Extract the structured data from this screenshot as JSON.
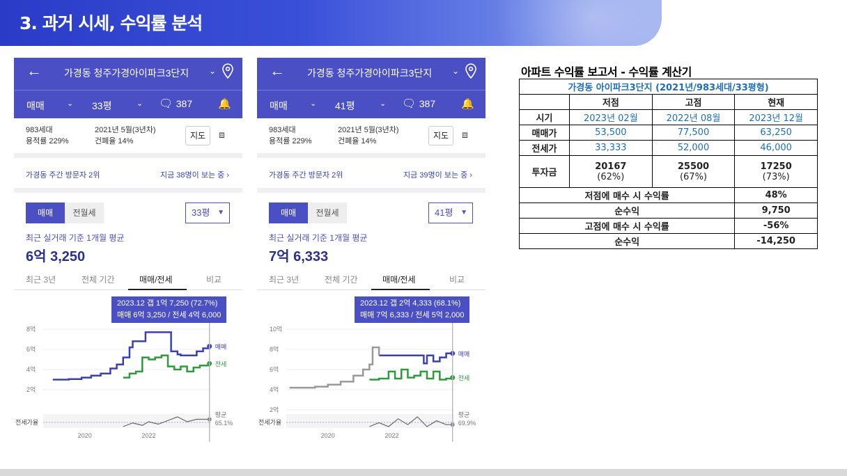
{
  "header": {
    "title": "3. 과거 시세, 수익률 분석"
  },
  "panels": [
    {
      "title": "가경동 청주가경아이파크3단지",
      "deal_type": "매매",
      "size": "33평",
      "talk_count": "387",
      "households": "983세대",
      "floor_area_ratio": "용적률 229%",
      "built": "2021년 5월(3년차)",
      "coverage_ratio": "건폐율 14%",
      "map_label": "지도",
      "visitor_rank": "가경동 주간 방문자 2위",
      "viewing_now": "지금 38명이 보는 중 ›",
      "seg_on": "매매",
      "seg_off": "전월세",
      "select_value": "33평",
      "avg_label": "최근 실거래 기준 1개월 평균",
      "avg_value": "6억 3,250",
      "tabs": [
        "최근 3년",
        "전체 기간",
        "매매/전세",
        "비교"
      ],
      "tooltip_line1": "2023.12  갭 1억 7,250 (72.7%)",
      "tooltip_line2": "매매 6억 3,250 / 전세 4억 6,000"
    },
    {
      "title": "가경동 청주가경아이파크3단지",
      "deal_type": "매매",
      "size": "41평",
      "talk_count": "387",
      "households": "983세대",
      "floor_area_ratio": "용적률 229%",
      "built": "2021년 5월(3년차)",
      "coverage_ratio": "건폐율 14%",
      "map_label": "지도",
      "visitor_rank": "가경동 주간 방문자 2위",
      "viewing_now": "지금 39명이 보는 중 ›",
      "seg_on": "매매",
      "seg_off": "전월세",
      "select_value": "41평",
      "avg_label": "최근 실거래 기준 1개월 평균",
      "avg_value": "7억 6,333",
      "tabs": [
        "최근 3년",
        "전체 기간",
        "매매/전세",
        "비교"
      ],
      "tooltip_line1": "2023.12  갭 2억 4,333 (68.1%)",
      "tooltip_line2": "매매 7억 6,333 / 전세 5억 2,000"
    }
  ],
  "chart_data": [
    {
      "type": "line",
      "ylim": [
        0,
        8
      ],
      "yticks": [
        "2억",
        "4억",
        "6억",
        "8억"
      ],
      "xticks": [
        "2020",
        "2022"
      ],
      "ratio_label": "전세가율",
      "series": [
        {
          "name": "매매",
          "color": "#3b3fb6",
          "x": [
            2019.0,
            2019.5,
            2019.9,
            2020.2,
            2020.5,
            2020.8,
            2021.0,
            2021.2,
            2021.4,
            2021.5,
            2021.6,
            2021.9,
            2022.1,
            2022.3,
            2022.5,
            2022.7,
            2022.9,
            2023.0,
            2023.2,
            2023.5,
            2023.7,
            2023.9
          ],
          "values": [
            3.0,
            3.05,
            3.2,
            3.4,
            3.6,
            4.1,
            4.5,
            5.2,
            6.2,
            6.8,
            6.8,
            7.7,
            7.7,
            7.7,
            7.7,
            5.8,
            5.5,
            5.4,
            5.4,
            5.8,
            6.1,
            6.3
          ]
        },
        {
          "name": "전세",
          "color": "#2e9a3c",
          "x": [
            2021.2,
            2021.4,
            2021.6,
            2021.8,
            2022.0,
            2022.2,
            2022.4,
            2022.6,
            2022.8,
            2023.0,
            2023.2,
            2023.4,
            2023.6,
            2023.9
          ],
          "values": [
            3.2,
            3.6,
            3.8,
            5.2,
            5.0,
            5.2,
            5.4,
            4.3,
            4.0,
            4.3,
            3.8,
            4.2,
            4.4,
            4.6
          ]
        }
      ],
      "ratio_series": {
        "name": "평균",
        "value_label": "65.1%",
        "x": [
          2021.2,
          2021.5,
          2021.8,
          2022.0,
          2022.3,
          2022.6,
          2022.9,
          2023.2,
          2023.5,
          2023.9
        ],
        "values": [
          0.8,
          1.1,
          0.9,
          1.2,
          1.0,
          1.3,
          1.6,
          1.2,
          1.4,
          1.4
        ]
      }
    },
    {
      "type": "line",
      "ylim": [
        2,
        10
      ],
      "yticks": [
        "2억",
        "4억",
        "6억",
        "8억",
        "10억"
      ],
      "xticks": [
        "2020",
        "2022"
      ],
      "ratio_label": "전세가율",
      "series": [
        {
          "name": "매매",
          "color": "#3b3fb6",
          "x": [
            2021.6,
            2022.0,
            2022.4,
            2022.8,
            2023.0,
            2023.1,
            2023.3,
            2023.5,
            2023.7,
            2023.9
          ],
          "values": [
            7.4,
            7.4,
            7.4,
            7.4,
            6.6,
            7.4,
            6.8,
            7.2,
            7.6,
            7.6
          ]
        },
        {
          "name": "전세",
          "color": "#2e9a3c",
          "x": [
            2021.3,
            2021.6,
            2021.9,
            2022.1,
            2022.3,
            2022.5,
            2022.7,
            2022.9,
            2023.1,
            2023.3,
            2023.5,
            2023.7,
            2023.9
          ],
          "values": [
            5.0,
            5.1,
            5.8,
            5.1,
            6.0,
            5.2,
            5.4,
            5.8,
            5.1,
            5.8,
            5.0,
            5.1,
            5.2
          ]
        },
        {
          "name": "",
          "color": "#999999",
          "x": [
            2018.8,
            2019.2,
            2019.6,
            2020.0,
            2020.4,
            2020.8,
            2021.1,
            2021.3,
            2021.4,
            2021.6
          ],
          "values": [
            4.2,
            4.2,
            4.3,
            4.5,
            4.8,
            5.4,
            6.0,
            6.5,
            8.2,
            7.4
          ]
        }
      ],
      "ratio_series": {
        "name": "평균",
        "value_label": "69.9%",
        "x": [
          2021.3,
          2021.6,
          2021.9,
          2022.2,
          2022.5,
          2022.8,
          2023.1,
          2023.4,
          2023.7,
          2023.9
        ],
        "values": [
          3.0,
          3.2,
          3.0,
          3.4,
          3.1,
          3.5,
          3.0,
          3.3,
          3.1,
          3.1
        ]
      }
    }
  ],
  "report": {
    "title": "아파트 수익률 보고서 - 수익률 계산기",
    "subtitle": "가경동 아이파크3단지 (2021년/983세대/33평형)",
    "cols": [
      "",
      "저점",
      "고점",
      "현재"
    ],
    "rows": [
      {
        "label": "시기",
        "vals": [
          "2023년 02월",
          "2022년 08월",
          "2023년 12월"
        ],
        "blue": true
      },
      {
        "label": "매매가",
        "vals": [
          "53,500",
          "77,500",
          "63,250"
        ],
        "blue": true
      },
      {
        "label": "전세가",
        "vals": [
          "33,333",
          "52,000",
          "46,000"
        ],
        "blue": true
      }
    ],
    "invest": {
      "label": "투자금",
      "vals": [
        "20167",
        "25500",
        "17250"
      ],
      "pcts": [
        "(62%)",
        "(67%)",
        "(73%)"
      ]
    },
    "summary": [
      {
        "label": "저점에 매수 시 수익률",
        "val": "48%"
      },
      {
        "label": "순수익",
        "val": "9,750"
      },
      {
        "label": "고점에 매수 시 수익률",
        "val": "-56%"
      },
      {
        "label": "순수익",
        "val": "-14,250"
      }
    ]
  }
}
